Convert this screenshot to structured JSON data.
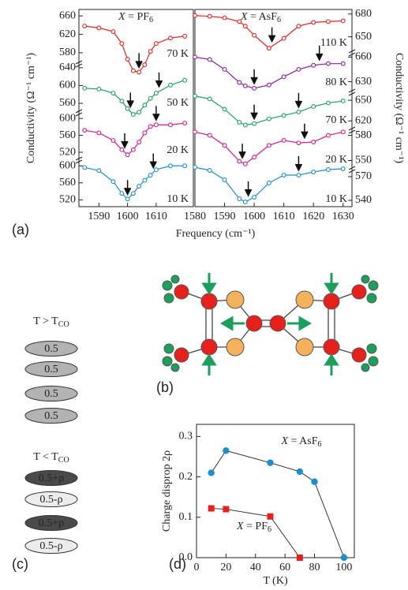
{
  "panel_labels": [
    "(a)",
    "(b)",
    "(c)",
    "(d)"
  ],
  "charge_order": [
    {
      "title": "T > TCO",
      "sites": [
        "0.5",
        "0.5",
        "0.5",
        "0.5"
      ]
    },
    {
      "title": "T < TCO",
      "sites": [
        "0.5+ρ",
        "0.5-ρ",
        "0.5+ρ",
        "0.5-ρ"
      ]
    }
  ],
  "chart_data": [
    {
      "type": "spectra",
      "title": "X = PF6",
      "y_label": "Conductivity (Ω⁻¹ cm⁻¹)",
      "x_label": "Frequency (cm⁻¹)",
      "y_side": "left",
      "xlim": [
        1583,
        1623
      ],
      "xticks": [
        1590,
        1600,
        1610
      ],
      "series": [
        {
          "name": "70 K",
          "color": "#e8201c",
          "ylim": [
            561,
            674
          ],
          "yticks": [
            580,
            620,
            660
          ],
          "arrows": [
            1604
          ],
          "x": [
            1585,
            1590,
            1595,
            1598,
            1600,
            1602,
            1604,
            1606,
            1608,
            1610,
            1615,
            1620
          ],
          "values": [
            638,
            634,
            626,
            600,
            566,
            541,
            538,
            554,
            583,
            600,
            612,
            616
          ]
        },
        {
          "name": "50 K",
          "color": "#1aa05a",
          "ylim": [
            544,
            654
          ],
          "yticks": [
            560,
            600,
            640
          ],
          "arrows": [
            1601,
            1611
          ],
          "x": [
            1585,
            1590,
            1595,
            1598,
            1600,
            1602,
            1604,
            1606,
            1608,
            1610,
            1615,
            1620
          ],
          "values": [
            594,
            592,
            583,
            565,
            548,
            535,
            540,
            556,
            571,
            583,
            601,
            612
          ]
        },
        {
          "name": "20 K",
          "color": "#e0158a",
          "ylim": [
            507,
            619
          ],
          "yticks": [
            520,
            560,
            600
          ],
          "arrows": [
            1599,
            1610
          ],
          "x": [
            1585,
            1590,
            1595,
            1598,
            1600,
            1602,
            1604,
            1606,
            1608,
            1610,
            1615,
            1620
          ],
          "values": [
            572,
            566,
            548,
            526,
            514,
            526,
            544,
            566,
            581,
            585,
            585,
            589
          ]
        },
        {
          "name": "10 K",
          "color": "#1a8fd0",
          "ylim": [
            504,
            619
          ],
          "yticks": [
            520,
            560,
            600
          ],
          "arrows": [
            1600,
            1609
          ],
          "x": [
            1585,
            1590,
            1595,
            1598,
            1600,
            1602,
            1604,
            1606,
            1608,
            1610,
            1615,
            1620
          ],
          "values": [
            596,
            589,
            563,
            535,
            522,
            535,
            552,
            566,
            578,
            591,
            600,
            600
          ]
        }
      ]
    },
    {
      "type": "spectra",
      "title": "X = AsF6",
      "y_label": "Conductivity (Ω⁻¹ cm⁻¹)",
      "y_side": "right",
      "xlim": [
        1580,
        1633
      ],
      "xticks": [
        1580,
        1590,
        1600,
        1610,
        1620,
        1630
      ],
      "series": [
        {
          "name": "110 K",
          "color": "#e8201c",
          "ylim": [
            632,
            686
          ],
          "yticks": [
            650,
            680
          ],
          "arrows": [
            1606
          ],
          "x": [
            1580,
            1585,
            1590,
            1595,
            1597,
            1600,
            1605,
            1610,
            1615,
            1620,
            1625,
            1630
          ],
          "values": [
            678,
            677,
            675,
            670,
            664,
            652,
            635,
            648,
            664,
            669,
            670,
            671
          ]
        },
        {
          "name": "80 K",
          "color": "#8b1f9c",
          "ylim": [
            620,
            668
          ],
          "yticks": [
            630,
            660
          ],
          "arrows": [
            1600,
            1622
          ],
          "x": [
            1580,
            1585,
            1590,
            1595,
            1597,
            1600,
            1605,
            1610,
            1615,
            1620,
            1625,
            1630
          ],
          "values": [
            660,
            657,
            645,
            629,
            625,
            622,
            626,
            636,
            645,
            650,
            652,
            652
          ]
        },
        {
          "name": "70 K",
          "color": "#1aa05a",
          "ylim": [
            610,
            665
          ],
          "yticks": [
            620,
            650
          ],
          "arrows": [
            1600,
            1615
          ],
          "x": [
            1580,
            1585,
            1590,
            1595,
            1597,
            1600,
            1605,
            1610,
            1615,
            1620,
            1625,
            1630
          ],
          "values": [
            656,
            652,
            637,
            618,
            614,
            616,
            623,
            628,
            633,
            641,
            646,
            649
          ]
        },
        {
          "name": "20 K",
          "color": "#e0158a",
          "ylim": [
            542,
            589
          ],
          "yticks": [
            550,
            580
          ],
          "arrows": [
            1596,
            1617
          ],
          "x": [
            1580,
            1585,
            1590,
            1595,
            1597,
            1600,
            1605,
            1610,
            1615,
            1620,
            1625,
            1630
          ],
          "values": [
            584,
            580,
            568,
            549,
            546,
            554,
            568,
            574,
            571,
            572,
            580,
            584
          ]
        },
        {
          "name": "10 K",
          "color": "#1a8fd0",
          "ylim": [
            532,
            582
          ],
          "yticks": [
            540,
            570
          ],
          "arrows": [
            1598,
            1615
          ],
          "x": [
            1580,
            1585,
            1590,
            1595,
            1597,
            1600,
            1605,
            1610,
            1615,
            1620,
            1625,
            1630
          ],
          "values": [
            582,
            578,
            566,
            542,
            538,
            544,
            562,
            572,
            572,
            576,
            579,
            580
          ]
        }
      ]
    },
    {
      "type": "line",
      "x_label": "T (K)",
      "y_label": "Charge disprop 2ρ",
      "xlim": [
        0,
        107
      ],
      "ylim": [
        0,
        0.33
      ],
      "xticks": [
        0,
        20,
        40,
        60,
        80,
        100
      ],
      "yticks": [
        {
          "value": 0,
          "label": "0.0"
        },
        0.1,
        0.2,
        0.3
      ],
      "series": [
        {
          "name": "X = AsF6",
          "color": "#1a8fd0",
          "marker": "circle",
          "x": [
            10,
            20,
            50,
            70,
            80,
            100
          ],
          "values": [
            0.21,
            0.265,
            0.235,
            0.213,
            0.188,
            0
          ]
        },
        {
          "name": "X = PF6",
          "color": "#e8201c",
          "marker": "square",
          "x": [
            10,
            20,
            50,
            70
          ],
          "values": [
            0.122,
            0.12,
            0.102,
            0
          ]
        }
      ]
    }
  ]
}
